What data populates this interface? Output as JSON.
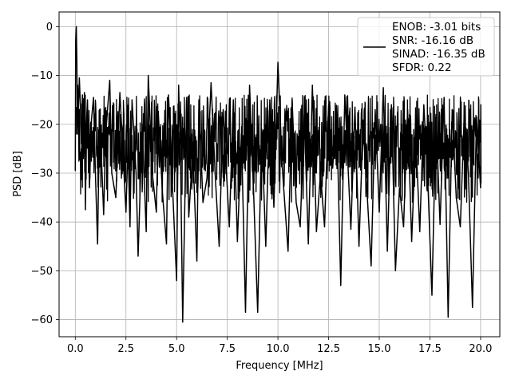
{
  "chart_data": {
    "type": "line",
    "xlabel": "Frequency [MHz]",
    "ylabel": "PSD [dB]",
    "xlim": [
      -0.8,
      20.95
    ],
    "ylim": [
      -63.5,
      3.0
    ],
    "grid": true,
    "legend_position": "top-right",
    "x_ticks": [
      0.0,
      2.5,
      5.0,
      7.5,
      10.0,
      12.5,
      15.0,
      17.5,
      20.0
    ],
    "x_tick_labels": [
      "0.0",
      "2.5",
      "5.0",
      "7.5",
      "10.0",
      "12.5",
      "15.0",
      "17.5",
      "20.0"
    ],
    "y_ticks": [
      0,
      -10,
      -20,
      -30,
      -40,
      -50,
      -60
    ],
    "y_tick_labels": [
      "0",
      "−10",
      "−20",
      "−30",
      "−40",
      "−50",
      "−60"
    ],
    "series": [
      {
        "color": "#000000",
        "approximate_level_db": {
          "median": -25,
          "upper_envelope": -14,
          "lower_envelope": -36
        },
        "points": [
          [
            0.0,
            -29.5
          ],
          [
            0.02,
            -3.0
          ],
          [
            0.05,
            0.0
          ],
          [
            0.08,
            -8.0
          ],
          [
            0.1,
            -22.0
          ],
          [
            0.12,
            -12.0
          ],
          [
            0.15,
            -18.0
          ],
          [
            0.2,
            -10.5
          ],
          [
            0.25,
            -16.0
          ],
          [
            0.3,
            -24.0
          ],
          [
            0.35,
            -14.0
          ],
          [
            0.4,
            -27.0
          ],
          [
            0.45,
            -13.5
          ],
          [
            0.5,
            -37.5
          ],
          [
            0.55,
            -20.0
          ],
          [
            0.6,
            -15.0
          ],
          [
            0.7,
            -33.0
          ],
          [
            0.8,
            -19.0
          ],
          [
            0.9,
            -14.5
          ],
          [
            1.0,
            -31.0
          ],
          [
            1.1,
            -44.5
          ],
          [
            1.2,
            -17.0
          ],
          [
            1.4,
            -38.5
          ],
          [
            1.5,
            -22.0
          ],
          [
            1.7,
            -11.0
          ],
          [
            1.8,
            -30.0
          ],
          [
            2.0,
            -35.0
          ],
          [
            2.2,
            -13.5
          ],
          [
            2.5,
            -38.0
          ],
          [
            2.6,
            -24.0
          ],
          [
            2.7,
            -41.0
          ],
          [
            2.8,
            -15.0
          ],
          [
            3.0,
            -30.0
          ],
          [
            3.1,
            -47.0
          ],
          [
            3.3,
            -20.0
          ],
          [
            3.5,
            -42.0
          ],
          [
            3.6,
            -10.0
          ],
          [
            3.8,
            -30.0
          ],
          [
            4.0,
            -38.0
          ],
          [
            4.1,
            -18.0
          ],
          [
            4.3,
            -34.0
          ],
          [
            4.5,
            -44.5
          ],
          [
            4.6,
            -14.0
          ],
          [
            4.8,
            -33.0
          ],
          [
            5.0,
            -52.0
          ],
          [
            5.1,
            -12.0
          ],
          [
            5.2,
            -29.0
          ],
          [
            5.3,
            -60.5
          ],
          [
            5.5,
            -14.5
          ],
          [
            5.6,
            -39.0
          ],
          [
            5.8,
            -25.0
          ],
          [
            6.0,
            -48.0
          ],
          [
            6.1,
            -15.0
          ],
          [
            6.3,
            -36.0
          ],
          [
            6.5,
            -31.0
          ],
          [
            6.7,
            -11.5
          ],
          [
            6.9,
            -30.0
          ],
          [
            7.1,
            -45.0
          ],
          [
            7.3,
            -17.0
          ],
          [
            7.6,
            -41.0
          ],
          [
            7.8,
            -15.0
          ],
          [
            8.0,
            -44.0
          ],
          [
            8.2,
            -22.0
          ],
          [
            8.4,
            -58.5
          ],
          [
            8.6,
            -12.0
          ],
          [
            8.8,
            -34.0
          ],
          [
            9.0,
            -58.5
          ],
          [
            9.2,
            -21.0
          ],
          [
            9.4,
            -45.0
          ],
          [
            9.6,
            -15.0
          ],
          [
            9.8,
            -37.0
          ],
          [
            10.0,
            -7.3
          ],
          [
            10.2,
            -28.0
          ],
          [
            10.5,
            -46.0
          ],
          [
            10.7,
            -15.0
          ],
          [
            10.9,
            -36.0
          ],
          [
            11.1,
            -41.0
          ],
          [
            11.3,
            -18.0
          ],
          [
            11.5,
            -44.5
          ],
          [
            11.7,
            -12.0
          ],
          [
            11.9,
            -42.0
          ],
          [
            12.1,
            -30.0
          ],
          [
            12.3,
            -41.0
          ],
          [
            12.5,
            -16.0
          ],
          [
            12.7,
            -29.0
          ],
          [
            12.9,
            -18.0
          ],
          [
            13.1,
            -53.0
          ],
          [
            13.3,
            -14.0
          ],
          [
            13.6,
            -41.5
          ],
          [
            13.8,
            -16.5
          ],
          [
            14.0,
            -45.0
          ],
          [
            14.2,
            -20.0
          ],
          [
            14.4,
            -34.0
          ],
          [
            14.6,
            -49.0
          ],
          [
            14.8,
            -17.0
          ],
          [
            15.0,
            -38.0
          ],
          [
            15.2,
            -12.5
          ],
          [
            15.4,
            -46.0
          ],
          [
            15.6,
            -16.0
          ],
          [
            15.8,
            -50.0
          ],
          [
            16.0,
            -33.0
          ],
          [
            16.2,
            -41.0
          ],
          [
            16.4,
            -17.0
          ],
          [
            16.6,
            -44.0
          ],
          [
            16.8,
            -22.0
          ],
          [
            17.0,
            -42.0
          ],
          [
            17.2,
            -16.0
          ],
          [
            17.4,
            -32.0
          ],
          [
            17.6,
            -55.0
          ],
          [
            17.8,
            -18.0
          ],
          [
            18.0,
            -40.5
          ],
          [
            18.2,
            -14.5
          ],
          [
            18.4,
            -59.5
          ],
          [
            18.6,
            -17.0
          ],
          [
            18.8,
            -35.0
          ],
          [
            19.0,
            -41.0
          ],
          [
            19.2,
            -17.5
          ],
          [
            19.4,
            -30.0
          ],
          [
            19.6,
            -57.5
          ],
          [
            19.8,
            -18.5
          ],
          [
            20.0,
            -33.0
          ],
          [
            20.01,
            -16.0
          ],
          [
            20.02,
            -32.0
          ]
        ]
      }
    ],
    "legend": {
      "lines": [
        "ENOB: -3.01 bits",
        "SNR: -16.16 dB",
        "SINAD: -16.35 dB",
        "SFDR: 0.22"
      ]
    }
  }
}
